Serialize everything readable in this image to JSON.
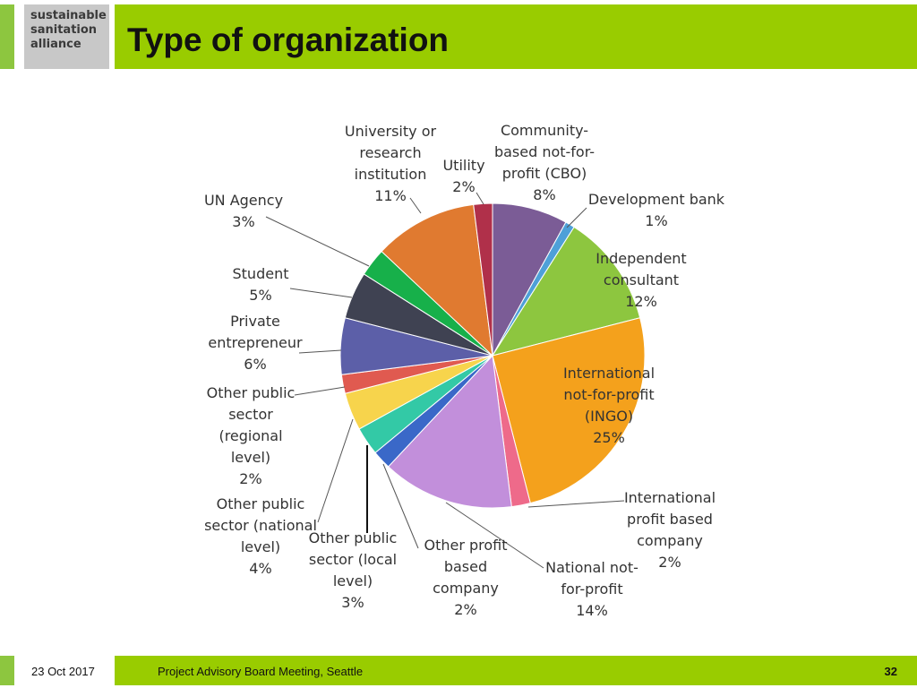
{
  "logo": {
    "lines": [
      "sustainable",
      "sanitation",
      "alliance"
    ]
  },
  "header": {
    "title": "Type of organization"
  },
  "footer": {
    "date": "23 Oct 2017",
    "meeting": "Project Advisory Board Meeting, Seattle",
    "page": "32"
  },
  "chart_data": {
    "type": "pie",
    "slices": [
      {
        "label": "Community-based not-for-profit (CBO)",
        "value": 8,
        "color": "#7b5c96",
        "lines": [
          "Community-",
          "based not-for-",
          "profit (CBO)",
          "8%"
        ]
      },
      {
        "label": "Development bank",
        "value": 1,
        "color": "#4ea0d8",
        "lines": [
          "Development bank",
          "1%"
        ]
      },
      {
        "label": "Independent consultant",
        "value": 12,
        "color": "#8dc63f",
        "lines": [
          "Independent",
          "consultant",
          "12%"
        ]
      },
      {
        "label": "International not-for-profit (INGO)",
        "value": 25,
        "color": "#f4a11c",
        "lines": [
          "International",
          "not-for-profit",
          "(INGO)",
          "25%"
        ]
      },
      {
        "label": "International profit based company",
        "value": 2,
        "color": "#ee6a8a",
        "lines": [
          "International",
          "profit based",
          "company",
          "2%"
        ]
      },
      {
        "label": "National not-for-profit",
        "value": 14,
        "color": "#c28fdb",
        "lines": [
          "National not-",
          "for-profit",
          "14%"
        ]
      },
      {
        "label": "Other profit based company",
        "value": 2,
        "color": "#3a68c8",
        "lines": [
          "Other profit",
          "based",
          "company",
          "2%"
        ]
      },
      {
        "label": "Other public sector (local level)",
        "value": 3,
        "color": "#33c9a6",
        "lines": [
          "Other public",
          "sector (local",
          "level)",
          "3%"
        ]
      },
      {
        "label": "Other public sector (national level)",
        "value": 4,
        "color": "#f7d44c",
        "lines": [
          "Other public",
          "sector (national",
          "level)",
          "4%"
        ]
      },
      {
        "label": "Other public sector (regional level)",
        "value": 2,
        "color": "#e05a50",
        "lines": [
          "Other public",
          "sector",
          "(regional",
          "level)",
          "2%"
        ]
      },
      {
        "label": "Private entrepreneur",
        "value": 6,
        "color": "#5c5fa8",
        "lines": [
          "Private",
          "entrepreneur",
          "6%"
        ]
      },
      {
        "label": "Student",
        "value": 5,
        "color": "#3f4252",
        "lines": [
          "Student",
          "5%"
        ]
      },
      {
        "label": "UN Agency",
        "value": 3,
        "color": "#17b04a",
        "lines": [
          "UN Agency",
          "3%"
        ]
      },
      {
        "label": "University or research institution",
        "value": 11,
        "color": "#e07a30",
        "lines": [
          "University or",
          "research",
          "institution",
          "11%"
        ]
      },
      {
        "label": "Utility",
        "value": 2,
        "color": "#b0304a",
        "lines": [
          "Utility",
          "2%"
        ]
      }
    ]
  }
}
